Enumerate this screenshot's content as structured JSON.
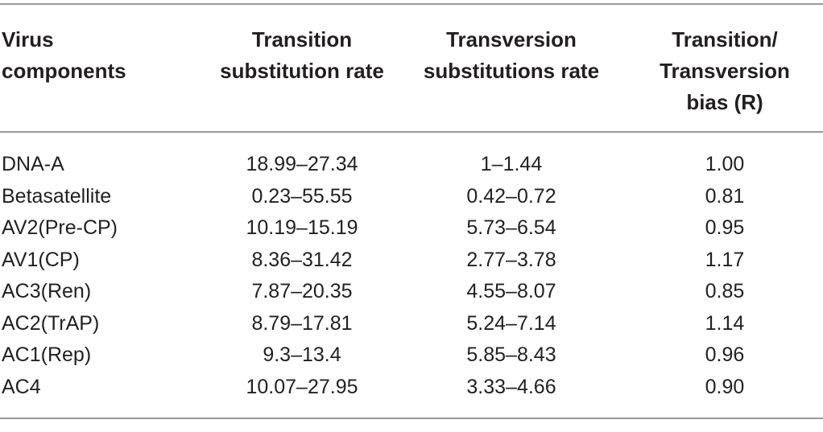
{
  "table": {
    "headers": [
      "Virus\ncomponents",
      "Transition\nsubstitution rate",
      "Transversion\nsubstitutions rate",
      "Transition/\nTransversion\nbias (R)"
    ],
    "rows": [
      [
        "DNA-A",
        "18.99–27.34",
        "1–1.44",
        "1.00"
      ],
      [
        "Betasatellite",
        "0.23–55.55",
        "0.42–0.72",
        "0.81"
      ],
      [
        "AV2(Pre-CP)",
        "10.19–15.19",
        "5.73–6.54",
        "0.95"
      ],
      [
        "AV1(CP)",
        "8.36–31.42",
        "2.77–3.78",
        "1.17"
      ],
      [
        "AC3(Ren)",
        "7.87–20.35",
        "4.55–8.07",
        "0.85"
      ],
      [
        "AC2(TrAP)",
        "8.79–17.81",
        "5.24–7.14",
        "1.14"
      ],
      [
        "AC1(Rep)",
        "9.3–13.4",
        "5.85–8.43",
        "0.96"
      ],
      [
        "AC4",
        "10.07–27.95",
        "3.33–4.66",
        "0.90"
      ]
    ]
  }
}
